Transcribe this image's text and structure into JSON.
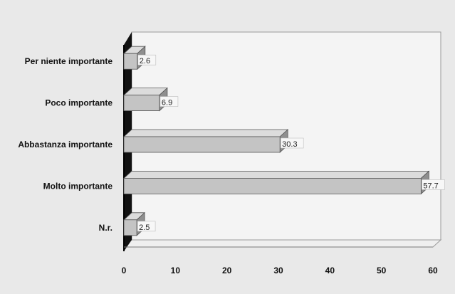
{
  "chart_data": {
    "type": "bar",
    "orientation": "horizontal",
    "categories": [
      "Per niente importante",
      "Poco importante",
      "Abbastanza importante",
      "Molto importante",
      "N.r."
    ],
    "values": [
      2.6,
      6.9,
      30.3,
      57.7,
      2.5
    ],
    "data_labels": [
      "2.6",
      "6.9",
      "30.3",
      "57.7",
      "2.5"
    ],
    "title": "",
    "xlabel": "",
    "ylabel": "",
    "xlim": [
      0,
      60
    ],
    "x_ticks": [
      "0",
      "10",
      "20",
      "30",
      "40",
      "50",
      "60"
    ],
    "grid": false,
    "legend": "none",
    "style": "3d",
    "colors": {
      "bar_face": "#c4c4c4",
      "bar_top": "#dcdcdc",
      "bar_side": "#8f8f8f",
      "plot_background": "#f4f4f4",
      "left_wall": "#111111",
      "floor": "#efefef",
      "outer_background": "#e9e9e9"
    }
  }
}
